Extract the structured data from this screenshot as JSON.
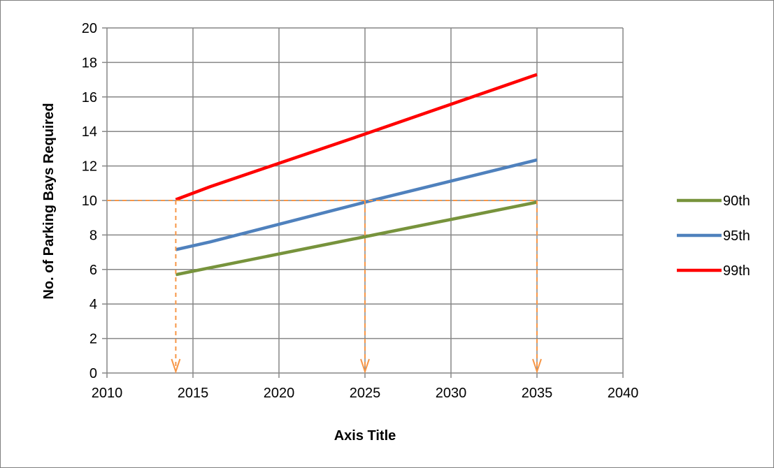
{
  "chart_data": {
    "type": "line",
    "xlabel": "Axis Title",
    "ylabel": "No. of Parking Bays Required",
    "xlim": [
      2010,
      2040
    ],
    "ylim": [
      0,
      20
    ],
    "x_ticks": [
      2010,
      2015,
      2020,
      2025,
      2030,
      2035,
      2040
    ],
    "y_ticks": [
      0,
      2,
      4,
      6,
      8,
      10,
      12,
      14,
      16,
      18,
      20
    ],
    "grid": true,
    "legend_position": "right",
    "series": [
      {
        "name": "90th",
        "color": "#77933c",
        "x": [
          2014,
          2016,
          2025,
          2035
        ],
        "y": [
          5.7,
          6.1,
          7.9,
          9.9
        ]
      },
      {
        "name": "95th",
        "color": "#4f81bd",
        "x": [
          2014,
          2016,
          2025,
          2035
        ],
        "y": [
          7.15,
          7.6,
          9.9,
          12.35
        ]
      },
      {
        "name": "99th",
        "color": "#ff0000",
        "x": [
          2014,
          2016,
          2025,
          2035
        ],
        "y": [
          10.05,
          10.8,
          13.85,
          17.3
        ]
      }
    ],
    "annotations": {
      "color": "#f79646",
      "threshold_y": 10,
      "guide_x": [
        2014,
        2025,
        2035
      ]
    }
  }
}
